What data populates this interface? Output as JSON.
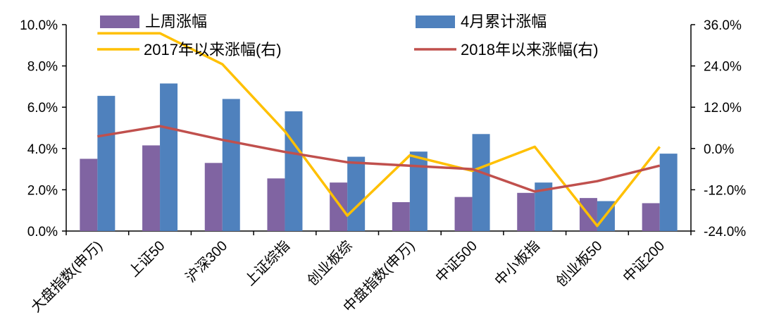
{
  "chart_data": {
    "type": "bar+line",
    "categories": [
      "大盘指数(申万)",
      "上证50",
      "沪深300",
      "上证综指",
      "创业板综",
      "中盘指数(申万)",
      "中证500",
      "中小板指",
      "创业板50",
      "中证200"
    ],
    "bar_series": [
      {
        "name": "上周涨幅",
        "color": "#8064A2",
        "values": [
          3.5,
          4.15,
          3.3,
          2.55,
          2.35,
          1.4,
          1.65,
          1.85,
          1.6,
          1.35
        ]
      },
      {
        "name": "4月累计涨幅",
        "color": "#4F81BD",
        "values": [
          6.55,
          7.15,
          6.4,
          5.8,
          3.6,
          3.85,
          4.7,
          2.35,
          1.45,
          3.75
        ]
      }
    ],
    "line_series": [
      {
        "name": "2017年以来涨幅(右)",
        "color": "#FFC000",
        "values": [
          33.5,
          33.5,
          24.5,
          5.0,
          -19.5,
          -2.0,
          -6.5,
          0.5,
          -22.5,
          0.5
        ]
      },
      {
        "name": "2018年以来涨幅(右)",
        "color": "#C0504D",
        "values": [
          3.5,
          6.5,
          2.5,
          -1.0,
          -4.0,
          -5.0,
          -6.0,
          -12.5,
          -9.5,
          -5.0
        ]
      }
    ],
    "y_left": {
      "min": 0,
      "max": 10,
      "step": 2,
      "tick_labels": [
        "0.0%",
        "2.0%",
        "4.0%",
        "6.0%",
        "8.0%",
        "10.0%"
      ]
    },
    "y_right": {
      "min": -24,
      "max": 36,
      "step": 12,
      "tick_labels": [
        "-24.0%",
        "-12.0%",
        "0.0%",
        "12.0%",
        "24.0%",
        "36.0%"
      ]
    }
  }
}
